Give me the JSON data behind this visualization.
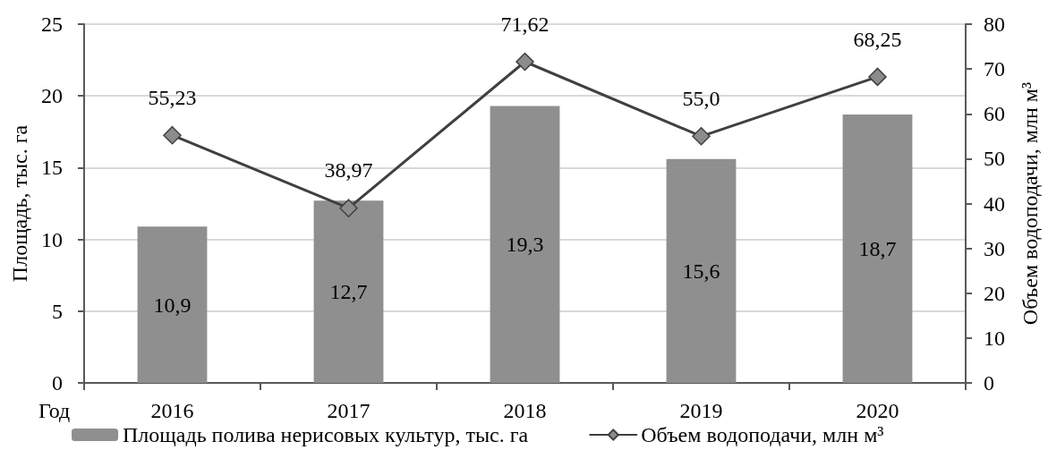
{
  "chart_data": {
    "type": "bar",
    "categories": [
      "2016",
      "2017",
      "2018",
      "2019",
      "2020"
    ],
    "xlabel": "Год",
    "ylabel": "Площадь, тыс. га",
    "y2label": "Объем водоподачи, млн м³",
    "series": [
      {
        "name": "Площадь полива нерисовых культур, тыс. га",
        "color": "#8f8f8f",
        "values": [
          10.9,
          12.7,
          19.3,
          15.6,
          18.7
        ],
        "value_labels": [
          "10,9",
          "12,7",
          "19,3",
          "15,6",
          "18,7"
        ]
      },
      {
        "name": "Объем водоподачи, млн м³",
        "type": "line",
        "axis": "y2",
        "color": "#404040",
        "values": [
          55.23,
          38.97,
          71.62,
          55.0,
          68.25
        ],
        "value_labels": [
          "55,23",
          "38,97",
          "71,62",
          "55,0",
          "68,25"
        ]
      }
    ],
    "ylim": [
      0,
      25
    ],
    "yticks": [
      0,
      5,
      10,
      15,
      20,
      25
    ],
    "y2lim": [
      0,
      80
    ],
    "y2ticks": [
      0,
      10,
      20,
      30,
      40,
      50,
      60,
      70,
      80
    ],
    "grid": "y",
    "legend": "bottom",
    "marker": "diamond"
  }
}
